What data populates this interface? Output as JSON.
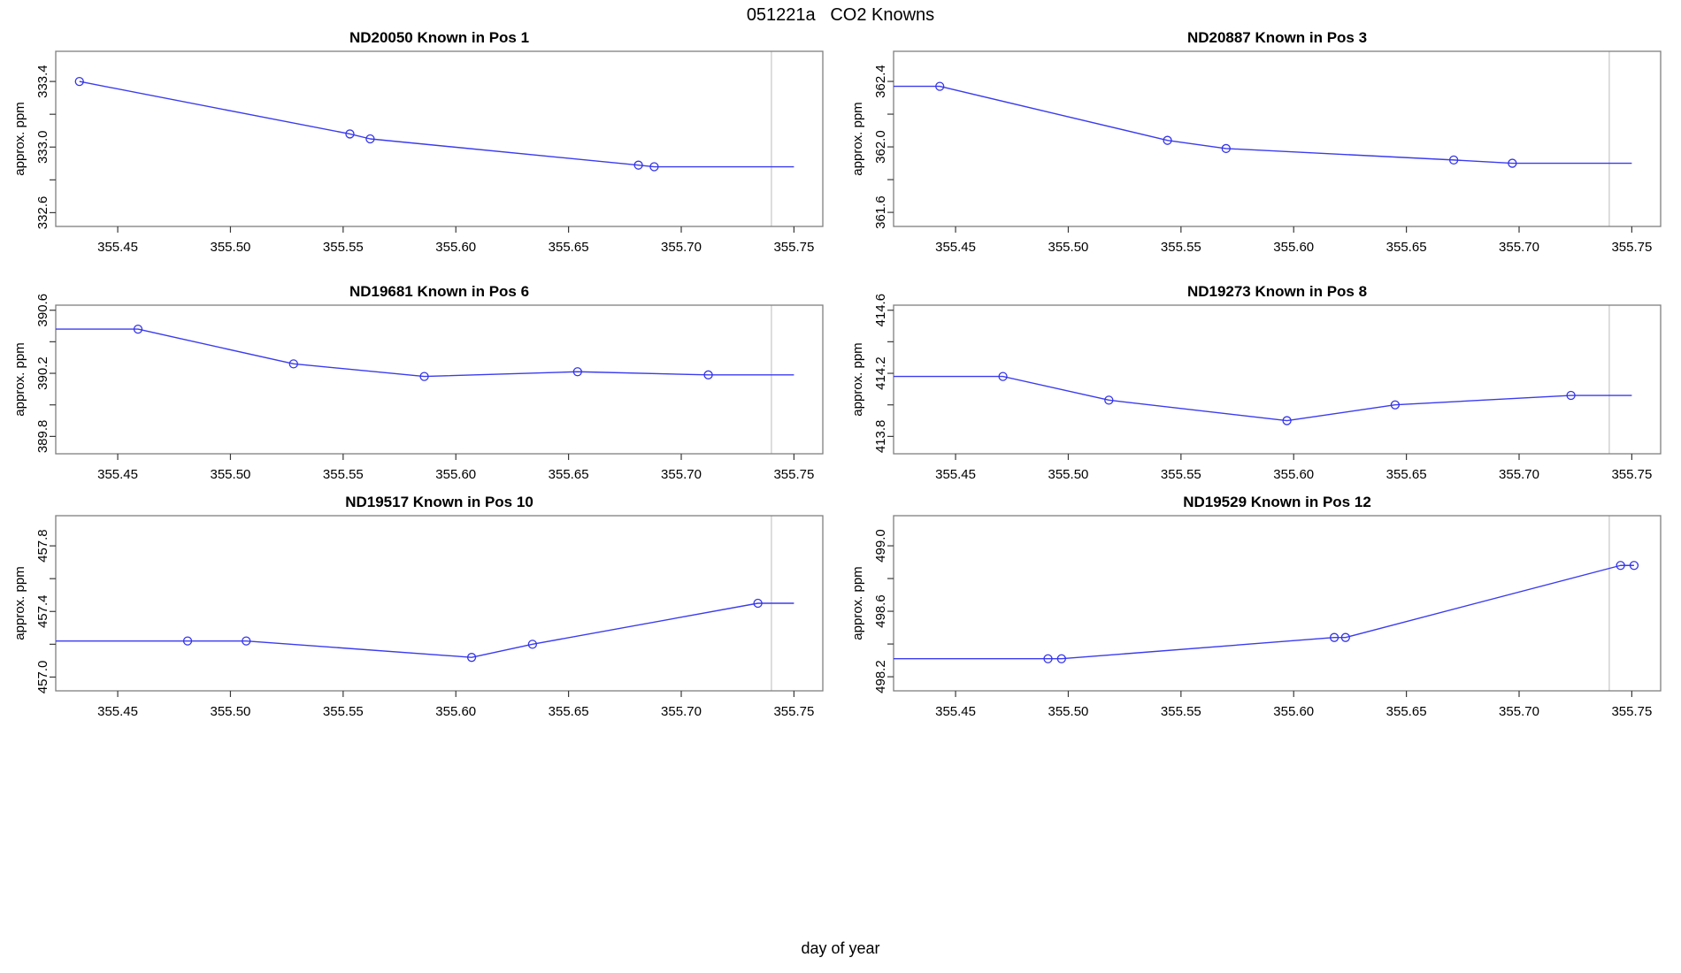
{
  "header": {
    "title": "051221a   CO2 Knowns"
  },
  "footer": {
    "xlabel": "day of year"
  },
  "style": {
    "background": "#ffffff",
    "line_color": "#3b3bf0",
    "marker_color": "#3434e8",
    "vline_color": "#c6c6c6",
    "frame_color": "#7f7f7f",
    "tick_color": "#3a3a3a",
    "text_color": "#000000"
  },
  "chart_data": [
    {
      "type": "line",
      "title": "ND20050    Known in Pos 1",
      "sample_id": "ND20050",
      "position_label": "Known in Pos 1",
      "ylabel": "approx. ppm",
      "xlim": [
        355.4225,
        355.7628
      ],
      "ylim": [
        332.516,
        333.584
      ],
      "xticks": {
        "values": [
          355.45,
          355.5,
          355.55,
          355.6,
          355.65,
          355.7,
          355.75
        ],
        "labels": [
          "355.45",
          "355.50",
          "355.55",
          "355.60",
          "355.65",
          "355.70",
          "355.75"
        ]
      },
      "yticks": {
        "values": [
          332.6,
          332.8,
          333.0,
          333.2,
          333.4
        ],
        "labels": [
          "332.6",
          "",
          "333.0",
          "",
          "333.4"
        ]
      },
      "vline_x": 355.74,
      "line": [
        [
          355.433,
          333.4
        ],
        [
          355.553,
          333.08
        ],
        [
          355.562,
          333.05
        ],
        [
          355.681,
          332.89
        ],
        [
          355.688,
          332.88
        ],
        [
          355.75,
          332.88
        ]
      ],
      "points": [
        [
          355.433,
          333.4
        ],
        [
          355.553,
          333.08
        ],
        [
          355.562,
          333.05
        ],
        [
          355.681,
          332.89
        ],
        [
          355.688,
          332.88
        ]
      ]
    },
    {
      "type": "line",
      "title": "ND20887    Known in Pos 3",
      "sample_id": "ND20887",
      "position_label": "Known in Pos 3",
      "ylabel": "approx. ppm",
      "xlim": [
        355.4225,
        355.7628
      ],
      "ylim": [
        361.514,
        362.584
      ],
      "xticks": {
        "values": [
          355.45,
          355.5,
          355.55,
          355.6,
          355.65,
          355.7,
          355.75
        ],
        "labels": [
          "355.45",
          "355.50",
          "355.55",
          "355.60",
          "355.65",
          "355.70",
          "355.75"
        ]
      },
      "yticks": {
        "values": [
          361.6,
          361.8,
          362.0,
          362.2,
          362.4
        ],
        "labels": [
          "361.6",
          "",
          "362.0",
          "",
          "362.4"
        ]
      },
      "vline_x": 355.74,
      "line": [
        [
          355.4225,
          362.37
        ],
        [
          355.443,
          362.37
        ],
        [
          355.544,
          362.04
        ],
        [
          355.57,
          361.99
        ],
        [
          355.671,
          361.92
        ],
        [
          355.697,
          361.9
        ],
        [
          355.75,
          361.9
        ]
      ],
      "points": [
        [
          355.443,
          362.37
        ],
        [
          355.544,
          362.04
        ],
        [
          355.57,
          361.99
        ],
        [
          355.671,
          361.92
        ],
        [
          355.697,
          361.9
        ]
      ]
    },
    {
      "type": "line",
      "title": "ND19681    Known in Pos 6",
      "sample_id": "ND19681",
      "position_label": "Known in Pos 6",
      "ylabel": "approx. ppm",
      "xlim": [
        355.4225,
        355.7628
      ],
      "ylim": [
        389.69,
        390.632
      ],
      "xticks": {
        "values": [
          355.45,
          355.5,
          355.55,
          355.6,
          355.65,
          355.7,
          355.75
        ],
        "labels": [
          "355.45",
          "355.50",
          "355.55",
          "355.60",
          "355.65",
          "355.70",
          "355.75"
        ]
      },
      "yticks": {
        "values": [
          389.8,
          390.0,
          390.2,
          390.4,
          390.6
        ],
        "labels": [
          "389.8",
          "",
          "390.2",
          "",
          "390.6"
        ]
      },
      "vline_x": 355.74,
      "line": [
        [
          355.4225,
          390.48
        ],
        [
          355.459,
          390.48
        ],
        [
          355.528,
          390.26
        ],
        [
          355.586,
          390.18
        ],
        [
          355.654,
          390.21
        ],
        [
          355.712,
          390.19
        ],
        [
          355.75,
          390.19
        ]
      ],
      "points": [
        [
          355.459,
          390.48
        ],
        [
          355.528,
          390.26
        ],
        [
          355.586,
          390.18
        ],
        [
          355.654,
          390.21
        ],
        [
          355.712,
          390.19
        ]
      ]
    },
    {
      "type": "line",
      "title": "ND19273    Known in Pos 8",
      "sample_id": "ND19273",
      "position_label": "Known in Pos 8",
      "ylabel": "approx. ppm",
      "xlim": [
        355.4225,
        355.7628
      ],
      "ylim": [
        413.69,
        414.632
      ],
      "xticks": {
        "values": [
          355.45,
          355.5,
          355.55,
          355.6,
          355.65,
          355.7,
          355.75
        ],
        "labels": [
          "355.45",
          "355.50",
          "355.55",
          "355.60",
          "355.65",
          "355.70",
          "355.75"
        ]
      },
      "yticks": {
        "values": [
          413.8,
          414.0,
          414.2,
          414.4,
          414.6
        ],
        "labels": [
          "413.8",
          "",
          "414.2",
          "",
          "414.6"
        ]
      },
      "vline_x": 355.74,
      "line": [
        [
          355.4225,
          414.18
        ],
        [
          355.471,
          414.18
        ],
        [
          355.518,
          414.03
        ],
        [
          355.597,
          413.9
        ],
        [
          355.645,
          414.0
        ],
        [
          355.723,
          414.06
        ],
        [
          355.75,
          414.06
        ]
      ],
      "points": [
        [
          355.471,
          414.18
        ],
        [
          355.518,
          414.03
        ],
        [
          355.597,
          413.9
        ],
        [
          355.645,
          414.0
        ],
        [
          355.723,
          414.06
        ]
      ]
    },
    {
      "type": "line",
      "title": "ND19517    Known in Pos 10",
      "sample_id": "ND19517",
      "position_label": "Known in Pos 10",
      "ylabel": "approx. ppm",
      "xlim": [
        355.4225,
        355.7628
      ],
      "ylim": [
        456.916,
        457.984
      ],
      "xticks": {
        "values": [
          355.45,
          355.5,
          355.55,
          355.6,
          355.65,
          355.7,
          355.75
        ],
        "labels": [
          "355.45",
          "355.50",
          "355.55",
          "355.60",
          "355.65",
          "355.70",
          "355.75"
        ]
      },
      "yticks": {
        "values": [
          457.0,
          457.2,
          457.4,
          457.6,
          457.8
        ],
        "labels": [
          "457.0",
          "",
          "457.4",
          "",
          "457.8"
        ]
      },
      "vline_x": 355.74,
      "line": [
        [
          355.4225,
          457.22
        ],
        [
          355.481,
          457.22
        ],
        [
          355.507,
          457.22
        ],
        [
          355.607,
          457.12
        ],
        [
          355.634,
          457.2
        ],
        [
          355.734,
          457.45
        ],
        [
          355.75,
          457.45
        ]
      ],
      "points": [
        [
          355.481,
          457.22
        ],
        [
          355.507,
          457.22
        ],
        [
          355.607,
          457.12
        ],
        [
          355.634,
          457.2
        ],
        [
          355.734,
          457.45
        ]
      ]
    },
    {
      "type": "line",
      "title": "ND19529    Known in Pos 12",
      "sample_id": "ND19529",
      "position_label": "Known in Pos 12",
      "ylabel": "approx. ppm",
      "xlim": [
        355.4225,
        355.7628
      ],
      "ylim": [
        498.114,
        499.184
      ],
      "xticks": {
        "values": [
          355.45,
          355.5,
          355.55,
          355.6,
          355.65,
          355.7,
          355.75
        ],
        "labels": [
          "355.45",
          "355.50",
          "355.55",
          "355.60",
          "355.65",
          "355.70",
          "355.75"
        ]
      },
      "yticks": {
        "values": [
          498.2,
          498.4,
          498.6,
          498.8,
          499.0
        ],
        "labels": [
          "498.2",
          "",
          "498.6",
          "",
          "499.0"
        ]
      },
      "vline_x": 355.74,
      "line": [
        [
          355.4225,
          498.31
        ],
        [
          355.491,
          498.31
        ],
        [
          355.497,
          498.31
        ],
        [
          355.618,
          498.44
        ],
        [
          355.623,
          498.44
        ],
        [
          355.745,
          498.88
        ],
        [
          355.751,
          498.88
        ]
      ],
      "points": [
        [
          355.491,
          498.31
        ],
        [
          355.497,
          498.31
        ],
        [
          355.618,
          498.44
        ],
        [
          355.623,
          498.44
        ],
        [
          355.745,
          498.88
        ],
        [
          355.751,
          498.88
        ]
      ]
    }
  ]
}
